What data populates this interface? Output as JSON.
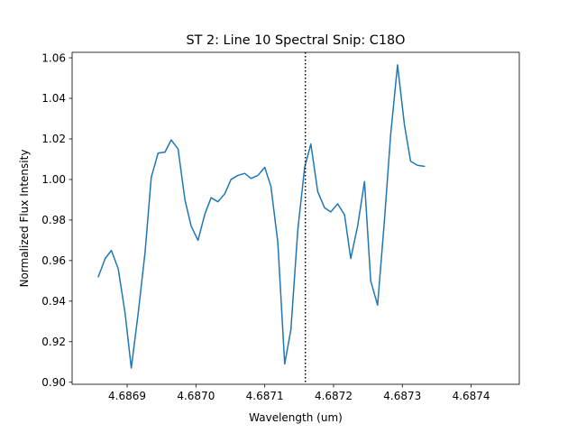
{
  "chart_data": {
    "type": "line",
    "title": "ST 2: Line 10 Spectral Snip: C18O",
    "xlabel": "Wavelength (um)",
    "ylabel": "Normalized Flux Intensity",
    "xlim": [
      4.68682,
      4.68747
    ],
    "ylim": [
      0.899,
      1.0627
    ],
    "xticks": [
      4.6869,
      4.687,
      4.6871,
      4.6872,
      4.6873,
      4.6874
    ],
    "xtick_labels": [
      "4.6869",
      "4.6870",
      "4.6871",
      "4.6872",
      "4.6873",
      "4.6874"
    ],
    "yticks": [
      0.9,
      0.92,
      0.94,
      0.96,
      0.98,
      1.0,
      1.02,
      1.04,
      1.06
    ],
    "ytick_labels": [
      "0.90",
      "0.92",
      "0.94",
      "0.96",
      "0.98",
      "1.00",
      "1.02",
      "1.04",
      "1.06"
    ],
    "grid": false,
    "series": [
      {
        "color": "#1f77b4",
        "x": [
          4.686858,
          4.686868,
          4.686877,
          4.686887,
          4.686897,
          4.686906,
          4.686916,
          4.686926,
          4.686935,
          4.686945,
          4.686955,
          4.686964,
          4.686974,
          4.686984,
          4.686993,
          4.687003,
          4.687013,
          4.687022,
          4.687032,
          4.687042,
          4.687051,
          4.687061,
          4.687071,
          4.68708,
          4.68709,
          4.6871,
          4.687109,
          4.687119,
          4.687129,
          4.687138,
          4.687148,
          4.687158,
          4.687167,
          4.687177,
          4.687187,
          4.687196,
          4.687206,
          4.687216,
          4.687225,
          4.687235,
          4.687245,
          4.687254,
          4.687264,
          4.687274,
          4.687283,
          4.687293,
          4.687303,
          4.687312,
          4.687322,
          4.687332,
          4.687341,
          4.687351,
          4.687361,
          4.68737,
          4.68738,
          4.68739,
          4.687399,
          4.687409,
          4.687419,
          4.687428,
          4.687438,
          4.687448,
          4.687457
        ],
        "y": [
          0.952,
          0.961,
          0.965,
          0.956,
          0.934,
          0.907,
          0.934,
          0.964,
          1.001,
          1.013,
          1.0135,
          1.0195,
          1.015,
          0.99,
          0.977,
          0.97,
          0.983,
          0.991,
          0.989,
          0.993,
          1.0,
          1.002,
          1.003,
          1.0005,
          1.002,
          1.006,
          0.9965,
          0.969,
          0.909,
          0.926,
          0.975,
          1.006,
          1.0175,
          0.994,
          0.986,
          0.984,
          0.988,
          0.9825,
          0.961,
          0.977,
          0.999,
          0.95,
          0.938,
          0.98,
          1.022,
          1.0565,
          1.027,
          1.009,
          1.007,
          1.0065,
          null,
          null,
          null,
          null,
          null,
          null,
          null,
          null,
          null,
          null,
          null,
          null,
          null
        ]
      }
    ],
    "reference_line": {
      "x": 4.687159,
      "style": "dotted",
      "color": "#000000"
    }
  }
}
